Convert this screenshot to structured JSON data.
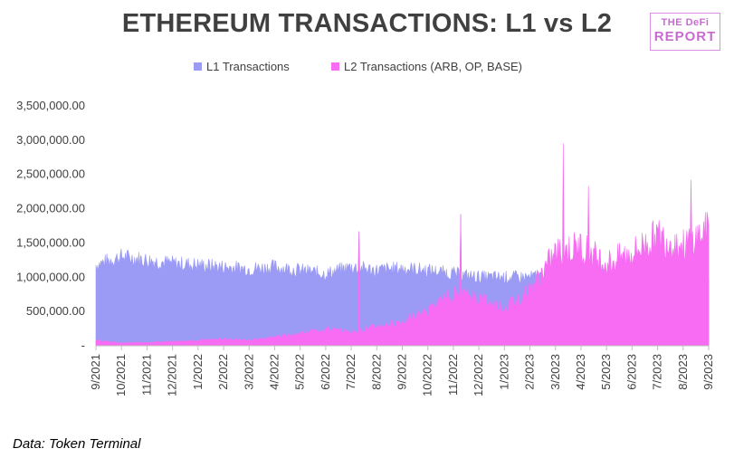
{
  "header": {
    "title": "ETHEREUM TRANSACTIONS: L1 vs L2"
  },
  "logo": {
    "line1": "THE DeFi",
    "line2": "REPORT"
  },
  "source": "Data: Token Terminal",
  "colors": {
    "l1": "#9b9bf5",
    "l2": "#f76cf2",
    "logo": "#c76bd1"
  },
  "chart_data": {
    "type": "area",
    "title": "ETHEREUM TRANSACTIONS: L1 vs L2",
    "xlabel": "",
    "ylabel": "",
    "ylim": [
      0,
      3500000
    ],
    "y_ticks": [
      0,
      500000,
      1000000,
      1500000,
      2000000,
      2500000,
      3000000,
      3500000
    ],
    "y_tick_labels": [
      "-",
      "500,000.00",
      "1,000,000.00",
      "1,500,000.00",
      "2,000,000.00",
      "2,500,000.00",
      "3,000,000.00",
      "3,500,000.00"
    ],
    "x_tick_labels": [
      "9/2021",
      "10/2021",
      "11/2021",
      "12/2021",
      "1/2022",
      "2/2022",
      "3/2022",
      "4/2022",
      "5/2022",
      "6/2022",
      "7/2022",
      "8/2022",
      "9/2022",
      "10/2022",
      "11/2022",
      "12/2022",
      "1/2023",
      "2/2023",
      "3/2023",
      "4/2023",
      "5/2023",
      "6/2023",
      "7/2023",
      "8/2023",
      "9/2023"
    ],
    "legend_position": "top",
    "grid": false,
    "stacked": false,
    "x": [
      "9/2021",
      "10/2021",
      "11/2021",
      "12/2021",
      "1/2022",
      "2/2022",
      "3/2022",
      "4/2022",
      "5/2022",
      "6/2022",
      "7/2022",
      "8/2022",
      "9/2022",
      "10/2022",
      "11/2022",
      "12/2022",
      "1/2023",
      "2/2023",
      "3/2023",
      "4/2023",
      "5/2023",
      "6/2023",
      "7/2023",
      "8/2023",
      "9/2023"
    ],
    "series": [
      {
        "name": "L1 Transactions",
        "values": [
          1180000,
          1300000,
          1250000,
          1200000,
          1180000,
          1150000,
          1120000,
          1150000,
          1100000,
          1050000,
          1150000,
          1100000,
          1130000,
          1100000,
          1050000,
          1000000,
          1000000,
          1000000,
          1050000,
          1050000,
          1030000,
          1050000,
          1100000,
          1050000,
          1050000
        ]
      },
      {
        "name": "L2 Transactions (ARB, OP, BASE)",
        "values": [
          80000,
          40000,
          50000,
          60000,
          80000,
          100000,
          80000,
          130000,
          180000,
          250000,
          200000,
          280000,
          350000,
          500000,
          750000,
          700000,
          550000,
          800000,
          1350000,
          1450000,
          1200000,
          1350000,
          1600000,
          1450000,
          1700000
        ]
      }
    ],
    "spikes": [
      {
        "x": "3/2023",
        "value": 2950000
      },
      {
        "x": "4/2023",
        "value": 2330000
      },
      {
        "x": "8/2023",
        "value": 2420000
      },
      {
        "x": "11/2022",
        "value": 1920000
      },
      {
        "x": "7/2022",
        "value": 1670000
      }
    ]
  }
}
